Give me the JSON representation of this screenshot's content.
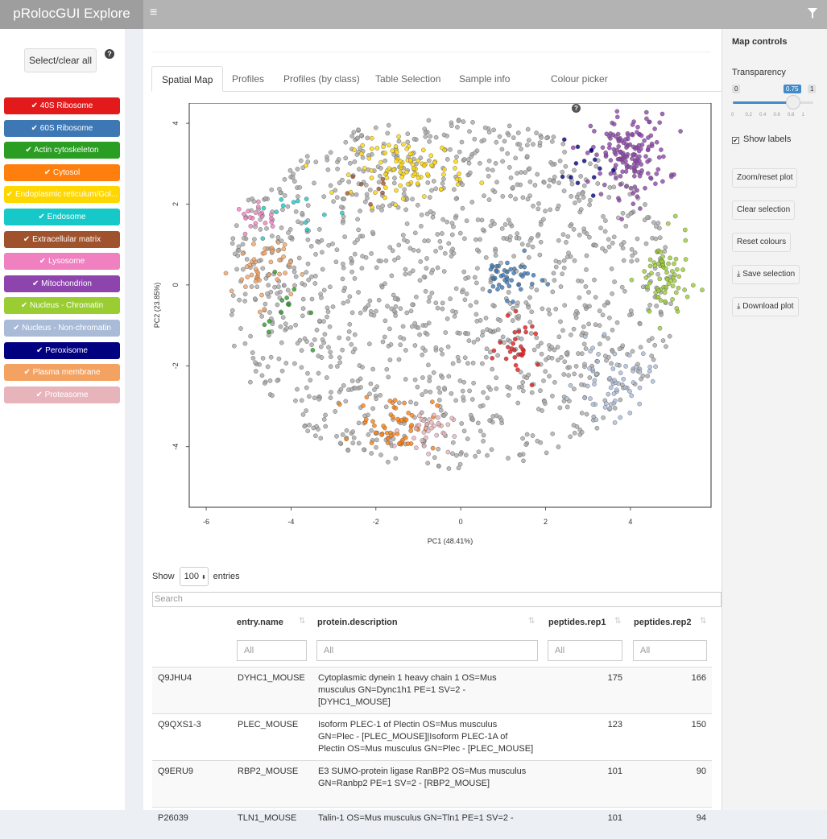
{
  "app": {
    "title": "pRolocGUI Explore"
  },
  "sidebar": {
    "select_all_label": "Select/clear all",
    "help_glyph": "?",
    "check_glyph": "✔",
    "classes": [
      {
        "label": "40S Ribosome",
        "color": "#e31a1c"
      },
      {
        "label": "60S Ribosome",
        "color": "#3d78b4"
      },
      {
        "label": "Actin cytoskeleton",
        "color": "#2a9d23"
      },
      {
        "label": "Cytosol",
        "color": "#ff7f0e"
      },
      {
        "label": "Endoplasmic reticulum/Gol...",
        "color": "#ffd700"
      },
      {
        "label": "Endosome",
        "color": "#17c8c8"
      },
      {
        "label": "Extracellular matrix",
        "color": "#a0522d"
      },
      {
        "label": "Lysosome",
        "color": "#f080c0"
      },
      {
        "label": "Mitochondrion",
        "color": "#8e44ad"
      },
      {
        "label": "Nucleus - Chromatin",
        "color": "#9acd32"
      },
      {
        "label": "Nucleus - Non-chromatin",
        "color": "#aabbd8"
      },
      {
        "label": "Peroxisome",
        "color": "#000080"
      },
      {
        "label": "Plasma membrane",
        "color": "#f4a261"
      },
      {
        "label": "Proteasome",
        "color": "#e8b4bc"
      }
    ]
  },
  "tabs": [
    "Spatial Map",
    "Profiles",
    "Profiles (by class)",
    "Table Selection",
    "Sample info",
    "Colour picker"
  ],
  "chart_data": {
    "type": "scatter",
    "xlabel": "PC1 (48.41%)",
    "ylabel": "PC2 (23.85%)",
    "xlim": [
      -6.4,
      5.9
    ],
    "ylim": [
      -5.5,
      4.5
    ],
    "xticks": [
      -6,
      -4,
      -2,
      0,
      2,
      4
    ],
    "yticks": [
      -4,
      -2,
      0,
      2,
      4
    ],
    "unlabelled_color": "#aaaaaa",
    "clusters": [
      {
        "name": "Mitochondrion",
        "color": "#8e44ad",
        "cx": 4.0,
        "cy": 3.2,
        "sx": 0.45,
        "sy": 0.5,
        "n": 160
      },
      {
        "name": "Peroxisome",
        "color": "#000080",
        "cx": 3.0,
        "cy": 2.7,
        "sx": 0.35,
        "sy": 0.4,
        "n": 14
      },
      {
        "name": "Endoplasmic reticulum/Golgi",
        "color": "#ffd700",
        "cx": -1.2,
        "cy": 2.9,
        "sx": 0.65,
        "sy": 0.35,
        "n": 90
      },
      {
        "name": "Extracellular matrix",
        "color": "#a0522d",
        "cx": -2.3,
        "cy": 2.3,
        "sx": 0.4,
        "sy": 0.2,
        "n": 8
      },
      {
        "name": "Lysosome",
        "color": "#f080c0",
        "cx": -4.7,
        "cy": 1.7,
        "sx": 0.3,
        "sy": 0.15,
        "n": 20
      },
      {
        "name": "Endosome",
        "color": "#17c8c8",
        "cx": -4.0,
        "cy": 1.8,
        "sx": 0.6,
        "sy": 0.3,
        "n": 12
      },
      {
        "name": "Plasma membrane",
        "color": "#f4a261",
        "cx": -4.7,
        "cy": 0.4,
        "sx": 0.35,
        "sy": 0.45,
        "n": 45
      },
      {
        "name": "Actin cytoskeleton",
        "color": "#2a9d23",
        "cx": -4.0,
        "cy": -0.8,
        "sx": 0.35,
        "sy": 0.5,
        "n": 12
      },
      {
        "name": "60S Ribosome",
        "color": "#3d78b4",
        "cx": 1.1,
        "cy": 0.2,
        "sx": 0.35,
        "sy": 0.25,
        "n": 45
      },
      {
        "name": "40S Ribosome",
        "color": "#e31a1c",
        "cx": 1.4,
        "cy": -1.6,
        "sx": 0.25,
        "sy": 0.35,
        "n": 30
      },
      {
        "name": "Nucleus - Chromatin",
        "color": "#9acd32",
        "cx": 4.8,
        "cy": 0.1,
        "sx": 0.3,
        "sy": 0.55,
        "n": 70
      },
      {
        "name": "Nucleus - Non-chromatin",
        "color": "#aabbd8",
        "cx": 3.6,
        "cy": -2.4,
        "sx": 0.45,
        "sy": 0.45,
        "n": 60
      },
      {
        "name": "Cytosol",
        "color": "#ff7f0e",
        "cx": -1.5,
        "cy": -3.4,
        "sx": 0.45,
        "sy": 0.35,
        "n": 55
      },
      {
        "name": "Proteasome",
        "color": "#e8b4bc",
        "cx": -0.8,
        "cy": -3.6,
        "sx": 0.3,
        "sy": 0.25,
        "n": 35
      }
    ]
  },
  "table": {
    "show_label": "Show",
    "entries_value": "100",
    "entries_label": "entries",
    "search_placeholder": "Search",
    "columns": [
      "entry.name",
      "protein.description",
      "peptides.rep1",
      "peptides.rep2"
    ],
    "filter_placeholder": "All",
    "rows": [
      {
        "id": "Q9JHU4",
        "entry": "DYHC1_MOUSE",
        "desc": [
          "Cytoplasmic dynein 1 heavy chain 1 OS=Mus",
          "musculus GN=Dync1h1 PE=1 SV=2 -",
          "[DYHC1_MOUSE]"
        ],
        "rep1": "175",
        "rep2": "166"
      },
      {
        "id": "Q9QXS1-3",
        "entry": "PLEC_MOUSE",
        "desc": [
          "Isoform PLEC-1 of Plectin OS=Mus musculus",
          "GN=Plec - [PLEC_MOUSE]|Isoform PLEC-1A of",
          "Plectin OS=Mus musculus GN=Plec - [PLEC_MOUSE]"
        ],
        "rep1": "123",
        "rep2": "150"
      },
      {
        "id": "Q9ERU9",
        "entry": "RBP2_MOUSE",
        "desc": [
          "E3 SUMO-protein ligase RanBP2 OS=Mus musculus",
          "GN=Ranbp2 PE=1 SV=2 - [RBP2_MOUSE]"
        ],
        "rep1": "101",
        "rep2": "90"
      },
      {
        "id": "P26039",
        "entry": "TLN1_MOUSE",
        "desc": [
          "Talin-1 OS=Mus musculus GN=Tln1 PE=1 SV=2 -"
        ],
        "rep1": "101",
        "rep2": "94"
      }
    ]
  },
  "map_controls": {
    "title": "Map controls",
    "transparency_label": "Transparency",
    "slider": {
      "min": "0",
      "max": "1",
      "value": "0.75",
      "value_num": 0.75,
      "ticks": [
        "0",
        "0.2",
        "0.4",
        "0.6",
        "0.8",
        "1"
      ]
    },
    "show_labels": "Show labels",
    "checkbox_glyph": "✔",
    "buttons": [
      "Zoom/reset plot",
      "Clear selection",
      "Reset colours",
      "Save selection",
      "Download plot"
    ],
    "download_glyph": "⤓"
  }
}
